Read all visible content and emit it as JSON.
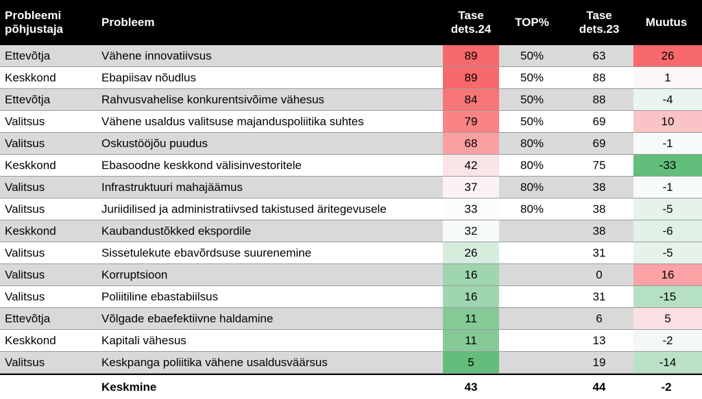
{
  "chart_data": {
    "type": "table",
    "columns": {
      "cause": "Probleemi põhjustaja",
      "problem": "Probleem",
      "level24": "Tase dets.24",
      "top": "TOP%",
      "level23": "Tase dets.23",
      "change": "Muutus"
    },
    "rows": [
      {
        "cause": "Ettevõtja",
        "problem": "Vähene innovatiivsus",
        "level24": 89,
        "top": "50%",
        "level23": 63,
        "change": 26
      },
      {
        "cause": "Keskkond",
        "problem": "Ebapiisav nõudlus",
        "level24": 89,
        "top": "50%",
        "level23": 88,
        "change": 1
      },
      {
        "cause": "Ettevõtja",
        "problem": "Rahvusvahelise konkurentsivõime vähesus",
        "level24": 84,
        "top": "50%",
        "level23": 88,
        "change": -4
      },
      {
        "cause": "Valitsus",
        "problem": "Vähene usaldus valitsuse majanduspoliitika suhtes",
        "level24": 79,
        "top": "50%",
        "level23": 69,
        "change": 10
      },
      {
        "cause": "Valitsus",
        "problem": "Oskustööjõu puudus",
        "level24": 68,
        "top": "80%",
        "level23": 69,
        "change": -1
      },
      {
        "cause": "Keskkond",
        "problem": "Ebasoodne keskkond välisinvestoritele",
        "level24": 42,
        "top": "80%",
        "level23": 75,
        "change": -33
      },
      {
        "cause": "Valitsus",
        "problem": "Infrastruktuuri mahajäämus",
        "level24": 37,
        "top": "80%",
        "level23": 38,
        "change": -1
      },
      {
        "cause": "Valitsus",
        "problem": "Juriidilised ja administratiivsed takistused äritegevusele",
        "level24": 33,
        "top": "80%",
        "level23": 38,
        "change": -5
      },
      {
        "cause": "Keskkond",
        "problem": "Kaubandustõkked ekspordile",
        "level24": 32,
        "top": "",
        "level23": 38,
        "change": -6
      },
      {
        "cause": "Valitsus",
        "problem": "Sissetulekute ebavõrdsuse suurenemine",
        "level24": 26,
        "top": "",
        "level23": 31,
        "change": -5
      },
      {
        "cause": "Valitsus",
        "problem": "Korruptsioon",
        "level24": 16,
        "top": "",
        "level23": 0,
        "change": 16
      },
      {
        "cause": "Valitsus",
        "problem": "Poliitiline ebastabiilsus",
        "level24": 16,
        "top": "",
        "level23": 31,
        "change": -15
      },
      {
        "cause": "Ettevõtja",
        "problem": "Võlgade ebaefektiivne haldamine",
        "level24": 11,
        "top": "",
        "level23": 6,
        "change": 5
      },
      {
        "cause": "Keskkond",
        "problem": "Kapitali vähesus",
        "level24": 11,
        "top": "",
        "level23": 13,
        "change": -2
      },
      {
        "cause": "Valitsus",
        "problem": "Keskpanga poliitika vähene usaldusväärsus",
        "level24": 5,
        "top": "",
        "level23": 19,
        "change": -14
      }
    ],
    "summary": {
      "label": "Keskmine",
      "level24": 43,
      "level23": 44,
      "change": -2
    },
    "colors": {
      "header_bg": "#000000",
      "row_alt_bg": "#d9d9d9",
      "high": "#f8696b",
      "mid": "#fcfcff",
      "low": "#63be7b"
    }
  }
}
